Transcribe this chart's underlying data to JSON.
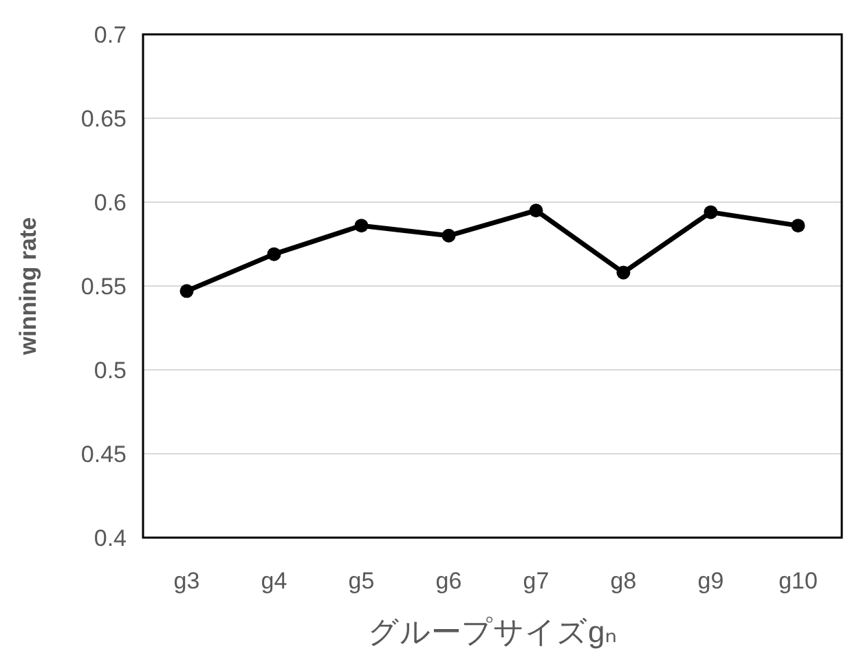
{
  "chart_data": {
    "type": "line",
    "xlabel": "グループサイズgₙ",
    "ylabel": "winning rate",
    "categories": [
      "g3",
      "g4",
      "g5",
      "g6",
      "g7",
      "g8",
      "g9",
      "g10"
    ],
    "series": [
      {
        "color": "#000000",
        "values": [
          0.547,
          0.569,
          0.586,
          0.58,
          0.595,
          0.558,
          0.594,
          0.586
        ]
      }
    ],
    "ylim": [
      0.4,
      0.7
    ],
    "yticks": [
      0.4,
      0.45,
      0.5,
      0.55,
      0.6,
      0.65,
      0.7
    ],
    "grid": "y",
    "marker": "circle",
    "line_style": "solid"
  }
}
